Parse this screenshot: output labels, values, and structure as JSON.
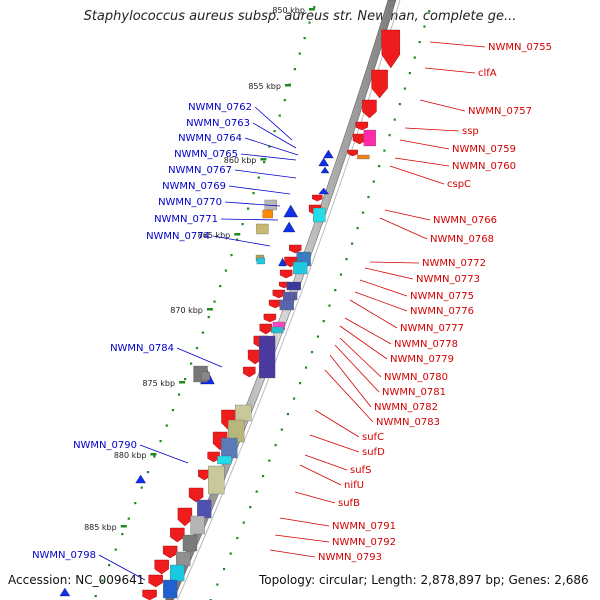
{
  "header": {
    "title": "Staphylococcus aureus subsp. aureus str. Newman, complete ge..."
  },
  "footer": {
    "accession": "Accession: NC_009641",
    "summary": "Topology: circular; Length: 2,878,897 bp; Genes: 2,686"
  },
  "colors": {
    "forward_strand_label": "#d40000",
    "reverse_strand_label": "#0000c8",
    "backbone": "#9a9a9a",
    "tick": "#1f8a1f"
  },
  "scale": {
    "unit": "kbp",
    "ticks": [
      "850 kbp",
      "855 kbp",
      "860 kbp",
      "865 kbp",
      "870 kbp",
      "875 kbp",
      "880 kbp",
      "885 kbp"
    ]
  },
  "reverse_genes": [
    "NWMN_0762",
    "NWMN_0763",
    "NWMN_0764",
    "NWMN_0765",
    "NWMN_0767",
    "NWMN_0769",
    "NWMN_0770",
    "NWMN_0771",
    "NWMN_0774",
    "NWMN_0784",
    "NWMN_0790",
    "NWMN_0798"
  ],
  "forward_genes": [
    "NWMN_0755",
    "clfA",
    "NWMN_0757",
    "ssp",
    "NWMN_0759",
    "NWMN_0760",
    "cspC",
    "NWMN_0766",
    "NWMN_0768",
    "NWMN_0772",
    "NWMN_0773",
    "NWMN_0775",
    "NWMN_0776",
    "NWMN_0777",
    "NWMN_0778",
    "NWMN_0779",
    "NWMN_0780",
    "NWMN_0781",
    "NWMN_0782",
    "NWMN_0783",
    "sufC",
    "sufD",
    "sufS",
    "nifU",
    "sufB",
    "NWMN_0791",
    "NWMN_0792",
    "NWMN_0793"
  ]
}
